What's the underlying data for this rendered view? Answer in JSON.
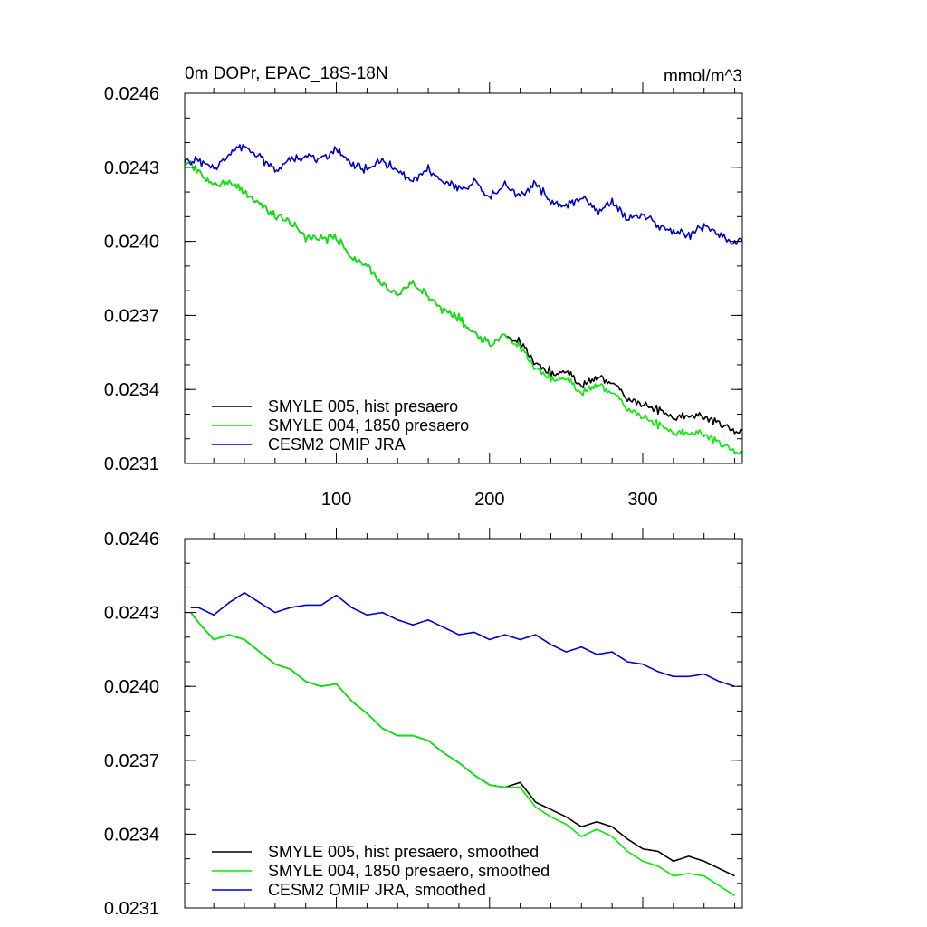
{
  "chart_data": [
    {
      "type": "line",
      "title": "0m DOPr, EPAC_18S-18N",
      "units": "mmol/m^3",
      "xlabel": "",
      "ylabel": "",
      "xlim": [
        1,
        365
      ],
      "ylim": [
        0.0231,
        0.0246
      ],
      "yticks": [
        "0.0246",
        "0.0243",
        "0.0240",
        "0.0237",
        "0.0234",
        "0.0231"
      ],
      "xticks": [
        "100",
        "200",
        "300"
      ],
      "legend_position": "bottom-left",
      "series": [
        {
          "name": "SMYLE 005, hist presaero",
          "color": "#000000",
          "x": [
            1,
            10,
            20,
            30,
            40,
            50,
            60,
            70,
            80,
            90,
            100,
            110,
            120,
            130,
            140,
            150,
            160,
            170,
            180,
            190,
            200,
            210,
            220,
            230,
            240,
            250,
            260,
            270,
            280,
            290,
            300,
            310,
            320,
            330,
            340,
            350,
            360,
            365
          ],
          "values": [
            0.02432,
            0.02429,
            0.02423,
            0.02424,
            0.0242,
            0.02415,
            0.0241,
            0.02408,
            0.02402,
            0.02401,
            0.02402,
            0.02393,
            0.0239,
            0.02382,
            0.02378,
            0.02383,
            0.02378,
            0.02372,
            0.02369,
            0.02363,
            0.02358,
            0.02362,
            0.02359,
            0.0235,
            0.02347,
            0.02347,
            0.02342,
            0.02345,
            0.02343,
            0.02336,
            0.02334,
            0.02332,
            0.02328,
            0.0233,
            0.02329,
            0.02326,
            0.02323,
            0.02324
          ]
        },
        {
          "name": "SMYLE 004, 1850 presaero",
          "color": "#00ee00",
          "x": [
            1,
            10,
            20,
            30,
            40,
            50,
            60,
            70,
            80,
            90,
            100,
            110,
            120,
            130,
            140,
            150,
            160,
            170,
            180,
            190,
            200,
            210,
            220,
            230,
            240,
            250,
            260,
            270,
            280,
            290,
            300,
            310,
            320,
            330,
            340,
            350,
            360,
            365
          ],
          "values": [
            0.02432,
            0.02429,
            0.02423,
            0.02424,
            0.0242,
            0.02415,
            0.0241,
            0.02408,
            0.02402,
            0.02401,
            0.02402,
            0.02393,
            0.0239,
            0.02382,
            0.02378,
            0.02383,
            0.02378,
            0.02372,
            0.02369,
            0.02363,
            0.02358,
            0.02362,
            0.02357,
            0.02348,
            0.02345,
            0.02344,
            0.02339,
            0.02342,
            0.02339,
            0.02332,
            0.02329,
            0.02326,
            0.02322,
            0.02323,
            0.02322,
            0.02318,
            0.02315,
            0.02315
          ]
        },
        {
          "name": "CESM2 OMIP JRA",
          "color": "#0000cc",
          "x": [
            1,
            10,
            20,
            30,
            40,
            50,
            60,
            70,
            80,
            90,
            100,
            110,
            120,
            130,
            140,
            150,
            160,
            170,
            180,
            190,
            200,
            210,
            220,
            230,
            240,
            250,
            260,
            270,
            280,
            290,
            300,
            310,
            320,
            330,
            340,
            350,
            360,
            365
          ],
          "values": [
            0.02432,
            0.02433,
            0.02429,
            0.02436,
            0.02439,
            0.02434,
            0.02429,
            0.02433,
            0.02435,
            0.02433,
            0.02438,
            0.02431,
            0.02429,
            0.02433,
            0.02428,
            0.02424,
            0.02429,
            0.02424,
            0.02421,
            0.02424,
            0.02418,
            0.02423,
            0.02418,
            0.02424,
            0.02416,
            0.02414,
            0.02418,
            0.02412,
            0.02416,
            0.02409,
            0.02411,
            0.02406,
            0.02404,
            0.02402,
            0.02406,
            0.02403,
            0.02399,
            0.02402
          ]
        }
      ]
    },
    {
      "type": "line",
      "title": "",
      "units": "",
      "xlabel": "",
      "ylabel": "",
      "xlim": [
        1,
        365
      ],
      "ylim": [
        0.0231,
        0.0246
      ],
      "yticks": [
        "0.0246",
        "0.0243",
        "0.0240",
        "0.0237",
        "0.0234",
        "0.0231"
      ],
      "xticks": [],
      "legend_position": "bottom-left",
      "series": [
        {
          "name": "SMYLE 005, hist presaero, smoothed",
          "color": "#000000",
          "x": [
            5,
            10,
            20,
            30,
            40,
            50,
            60,
            70,
            80,
            90,
            100,
            110,
            120,
            130,
            140,
            150,
            160,
            170,
            180,
            190,
            200,
            210,
            220,
            230,
            240,
            250,
            260,
            270,
            280,
            290,
            300,
            310,
            320,
            330,
            340,
            350,
            360
          ],
          "values": [
            0.0243,
            0.02426,
            0.02419,
            0.02421,
            0.02419,
            0.02414,
            0.02409,
            0.02407,
            0.02402,
            0.024,
            0.02401,
            0.02394,
            0.02389,
            0.02383,
            0.0238,
            0.0238,
            0.02378,
            0.02373,
            0.02369,
            0.02364,
            0.0236,
            0.02359,
            0.02361,
            0.02353,
            0.0235,
            0.02347,
            0.02343,
            0.02345,
            0.02343,
            0.02338,
            0.02334,
            0.02333,
            0.02329,
            0.02331,
            0.02329,
            0.02326,
            0.02323
          ]
        },
        {
          "name": "SMYLE 004, 1850 presaero, smoothed",
          "color": "#00ee00",
          "x": [
            5,
            10,
            20,
            30,
            40,
            50,
            60,
            70,
            80,
            90,
            100,
            110,
            120,
            130,
            140,
            150,
            160,
            170,
            180,
            190,
            200,
            210,
            220,
            230,
            240,
            250,
            260,
            270,
            280,
            290,
            300,
            310,
            320,
            330,
            340,
            350,
            360
          ],
          "values": [
            0.0243,
            0.02426,
            0.02419,
            0.02421,
            0.02419,
            0.02414,
            0.02409,
            0.02407,
            0.02402,
            0.024,
            0.02401,
            0.02394,
            0.02389,
            0.02383,
            0.0238,
            0.0238,
            0.02378,
            0.02373,
            0.02369,
            0.02364,
            0.0236,
            0.02359,
            0.02359,
            0.02351,
            0.02347,
            0.02344,
            0.02339,
            0.02342,
            0.02339,
            0.02333,
            0.02329,
            0.02327,
            0.02323,
            0.02324,
            0.02323,
            0.02319,
            0.02315
          ]
        },
        {
          "name": "CESM2 OMIP JRA, smoothed",
          "color": "#0000cc",
          "x": [
            5,
            10,
            20,
            30,
            40,
            50,
            60,
            70,
            80,
            90,
            100,
            110,
            120,
            130,
            140,
            150,
            160,
            170,
            180,
            190,
            200,
            210,
            220,
            230,
            240,
            250,
            260,
            270,
            280,
            290,
            300,
            310,
            320,
            330,
            340,
            350,
            360
          ],
          "values": [
            0.02432,
            0.02432,
            0.02429,
            0.02434,
            0.02438,
            0.02434,
            0.0243,
            0.02432,
            0.02433,
            0.02433,
            0.02437,
            0.02432,
            0.02429,
            0.0243,
            0.02427,
            0.02425,
            0.02427,
            0.02424,
            0.02421,
            0.02422,
            0.02419,
            0.02421,
            0.02419,
            0.02421,
            0.02417,
            0.02414,
            0.02416,
            0.02413,
            0.02414,
            0.0241,
            0.02409,
            0.02406,
            0.02404,
            0.02404,
            0.02405,
            0.02402,
            0.024
          ]
        }
      ]
    }
  ]
}
